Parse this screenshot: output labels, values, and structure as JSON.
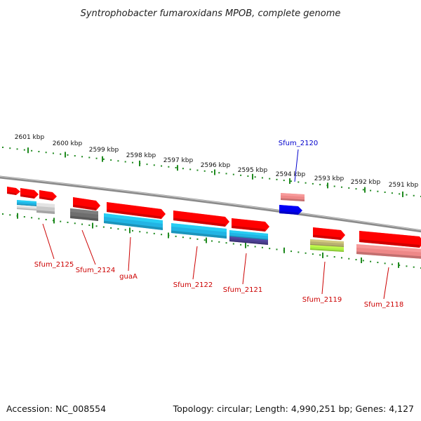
{
  "title": "Syntrophobacter fumaroxidans MPOB, complete genome",
  "footer": {
    "accession": "Accession: NC_008554",
    "summary": "Topology: circular; Length: 4,990,251 bp; Genes: 4,127"
  },
  "colors": {
    "backbone": "#8a8a8a",
    "tick": "#1f8a1f",
    "label_red": "#cc0000",
    "label_blue": "#0000cc",
    "red": "#ff0000",
    "pink": "#ee8888",
    "cyan": "#22b4e4",
    "gray": "#6e6e6e",
    "blue": "#0000ee",
    "olive": "#b8b070",
    "green": "#aaf044",
    "navy": "#4a3e8e"
  },
  "scale_labels": [
    {
      "text": "2601 kbp",
      "kbp": 2601
    },
    {
      "text": "2600 kbp",
      "kbp": 2600
    },
    {
      "text": "2599 kbp",
      "kbp": 2599
    },
    {
      "text": "2598 kbp",
      "kbp": 2598
    },
    {
      "text": "2597 kbp",
      "kbp": 2597
    },
    {
      "text": "2596 kbp",
      "kbp": 2596
    },
    {
      "text": "2595 kbp",
      "kbp": 2595
    },
    {
      "text": "2594 kbp",
      "kbp": 2594
    },
    {
      "text": "2593 kbp",
      "kbp": 2593
    },
    {
      "text": "2592 kbp",
      "kbp": 2592
    },
    {
      "text": "2591 kbp",
      "kbp": 2591
    }
  ],
  "gene_labels": [
    {
      "text": "Sfum_2125",
      "color": "red"
    },
    {
      "text": "Sfum_2124",
      "color": "red"
    },
    {
      "text": "guaA",
      "color": "red"
    },
    {
      "text": "Sfum_2122",
      "color": "red"
    },
    {
      "text": "Sfum_2121",
      "color": "red"
    },
    {
      "text": "Sfum_2120",
      "color": "blue"
    },
    {
      "text": "Sfum_2119",
      "color": "red"
    },
    {
      "text": "Sfum_2118",
      "color": "red"
    }
  ]
}
